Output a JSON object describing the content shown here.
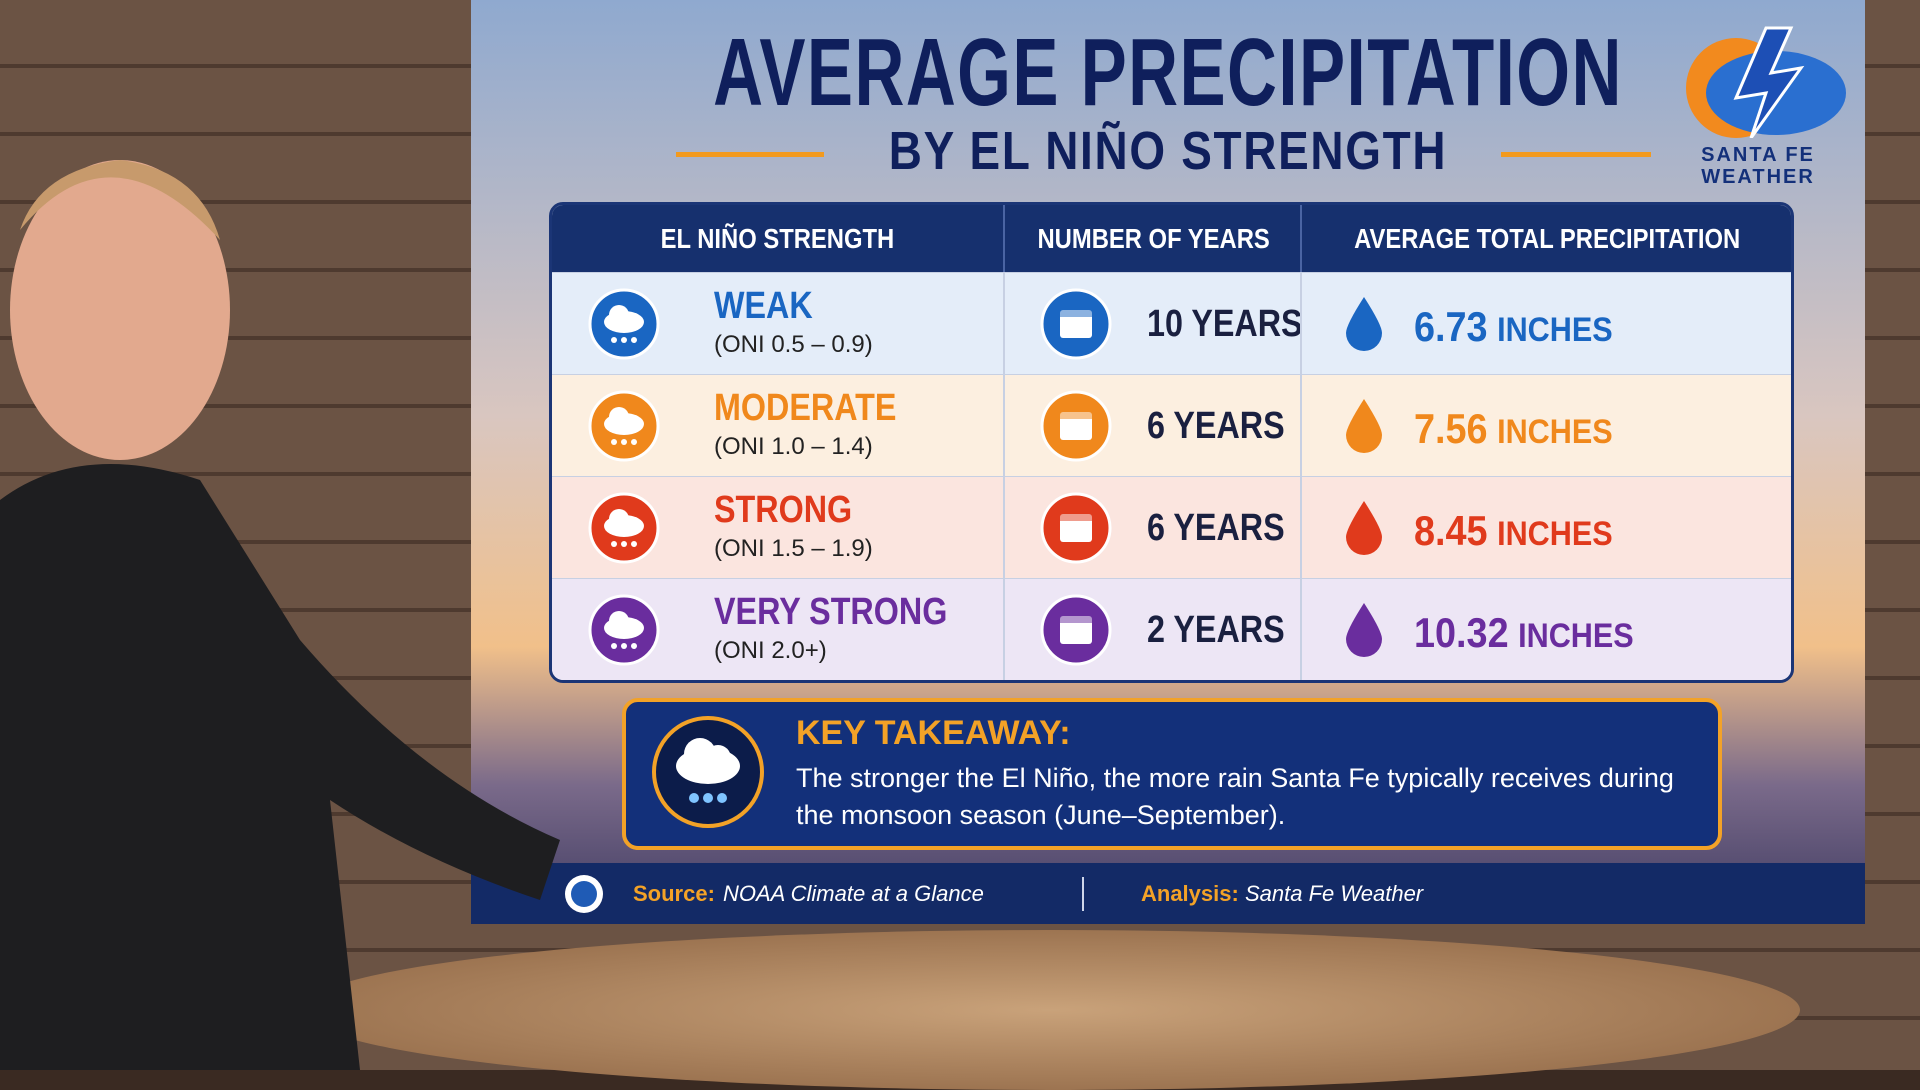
{
  "header": {
    "title": "AVERAGE PRECIPITATION",
    "subtitle": "BY EL NIÑO STRENGTH"
  },
  "logo": {
    "line1": "SANTA FE",
    "line2": "WEATHER"
  },
  "table": {
    "columns": [
      "EL NIÑO STRENGTH",
      "NUMBER OF YEARS",
      "AVERAGE TOTAL PRECIPITATION"
    ],
    "rows": [
      {
        "strength": "WEAK",
        "oni": "(ONI 0.5 – 0.9)",
        "years": "10 YEARS",
        "precip": "6.73",
        "unit": "INCHES"
      },
      {
        "strength": "MODERATE",
        "oni": "(ONI 1.0 – 1.4)",
        "years": "6 YEARS",
        "precip": "7.56",
        "unit": "INCHES"
      },
      {
        "strength": "STRONG",
        "oni": "(ONI 1.5 – 1.9)",
        "years": "6 YEARS",
        "precip": "8.45",
        "unit": "INCHES"
      },
      {
        "strength": "VERY STRONG",
        "oni": "(ONI 2.0+)",
        "years": "2 YEARS",
        "precip": "10.32",
        "unit": "INCHES"
      }
    ]
  },
  "takeaway": {
    "title": "KEY TAKEAWAY:",
    "text": "The stronger the El Niño, the more rain Santa Fe typically receives during the monsoon season (June–September)."
  },
  "footer": {
    "source_label": "Source:",
    "source": "NOAA Climate at a Glance",
    "analysis_label": "Analysis:",
    "analysis": "Santa Fe Weather"
  }
}
